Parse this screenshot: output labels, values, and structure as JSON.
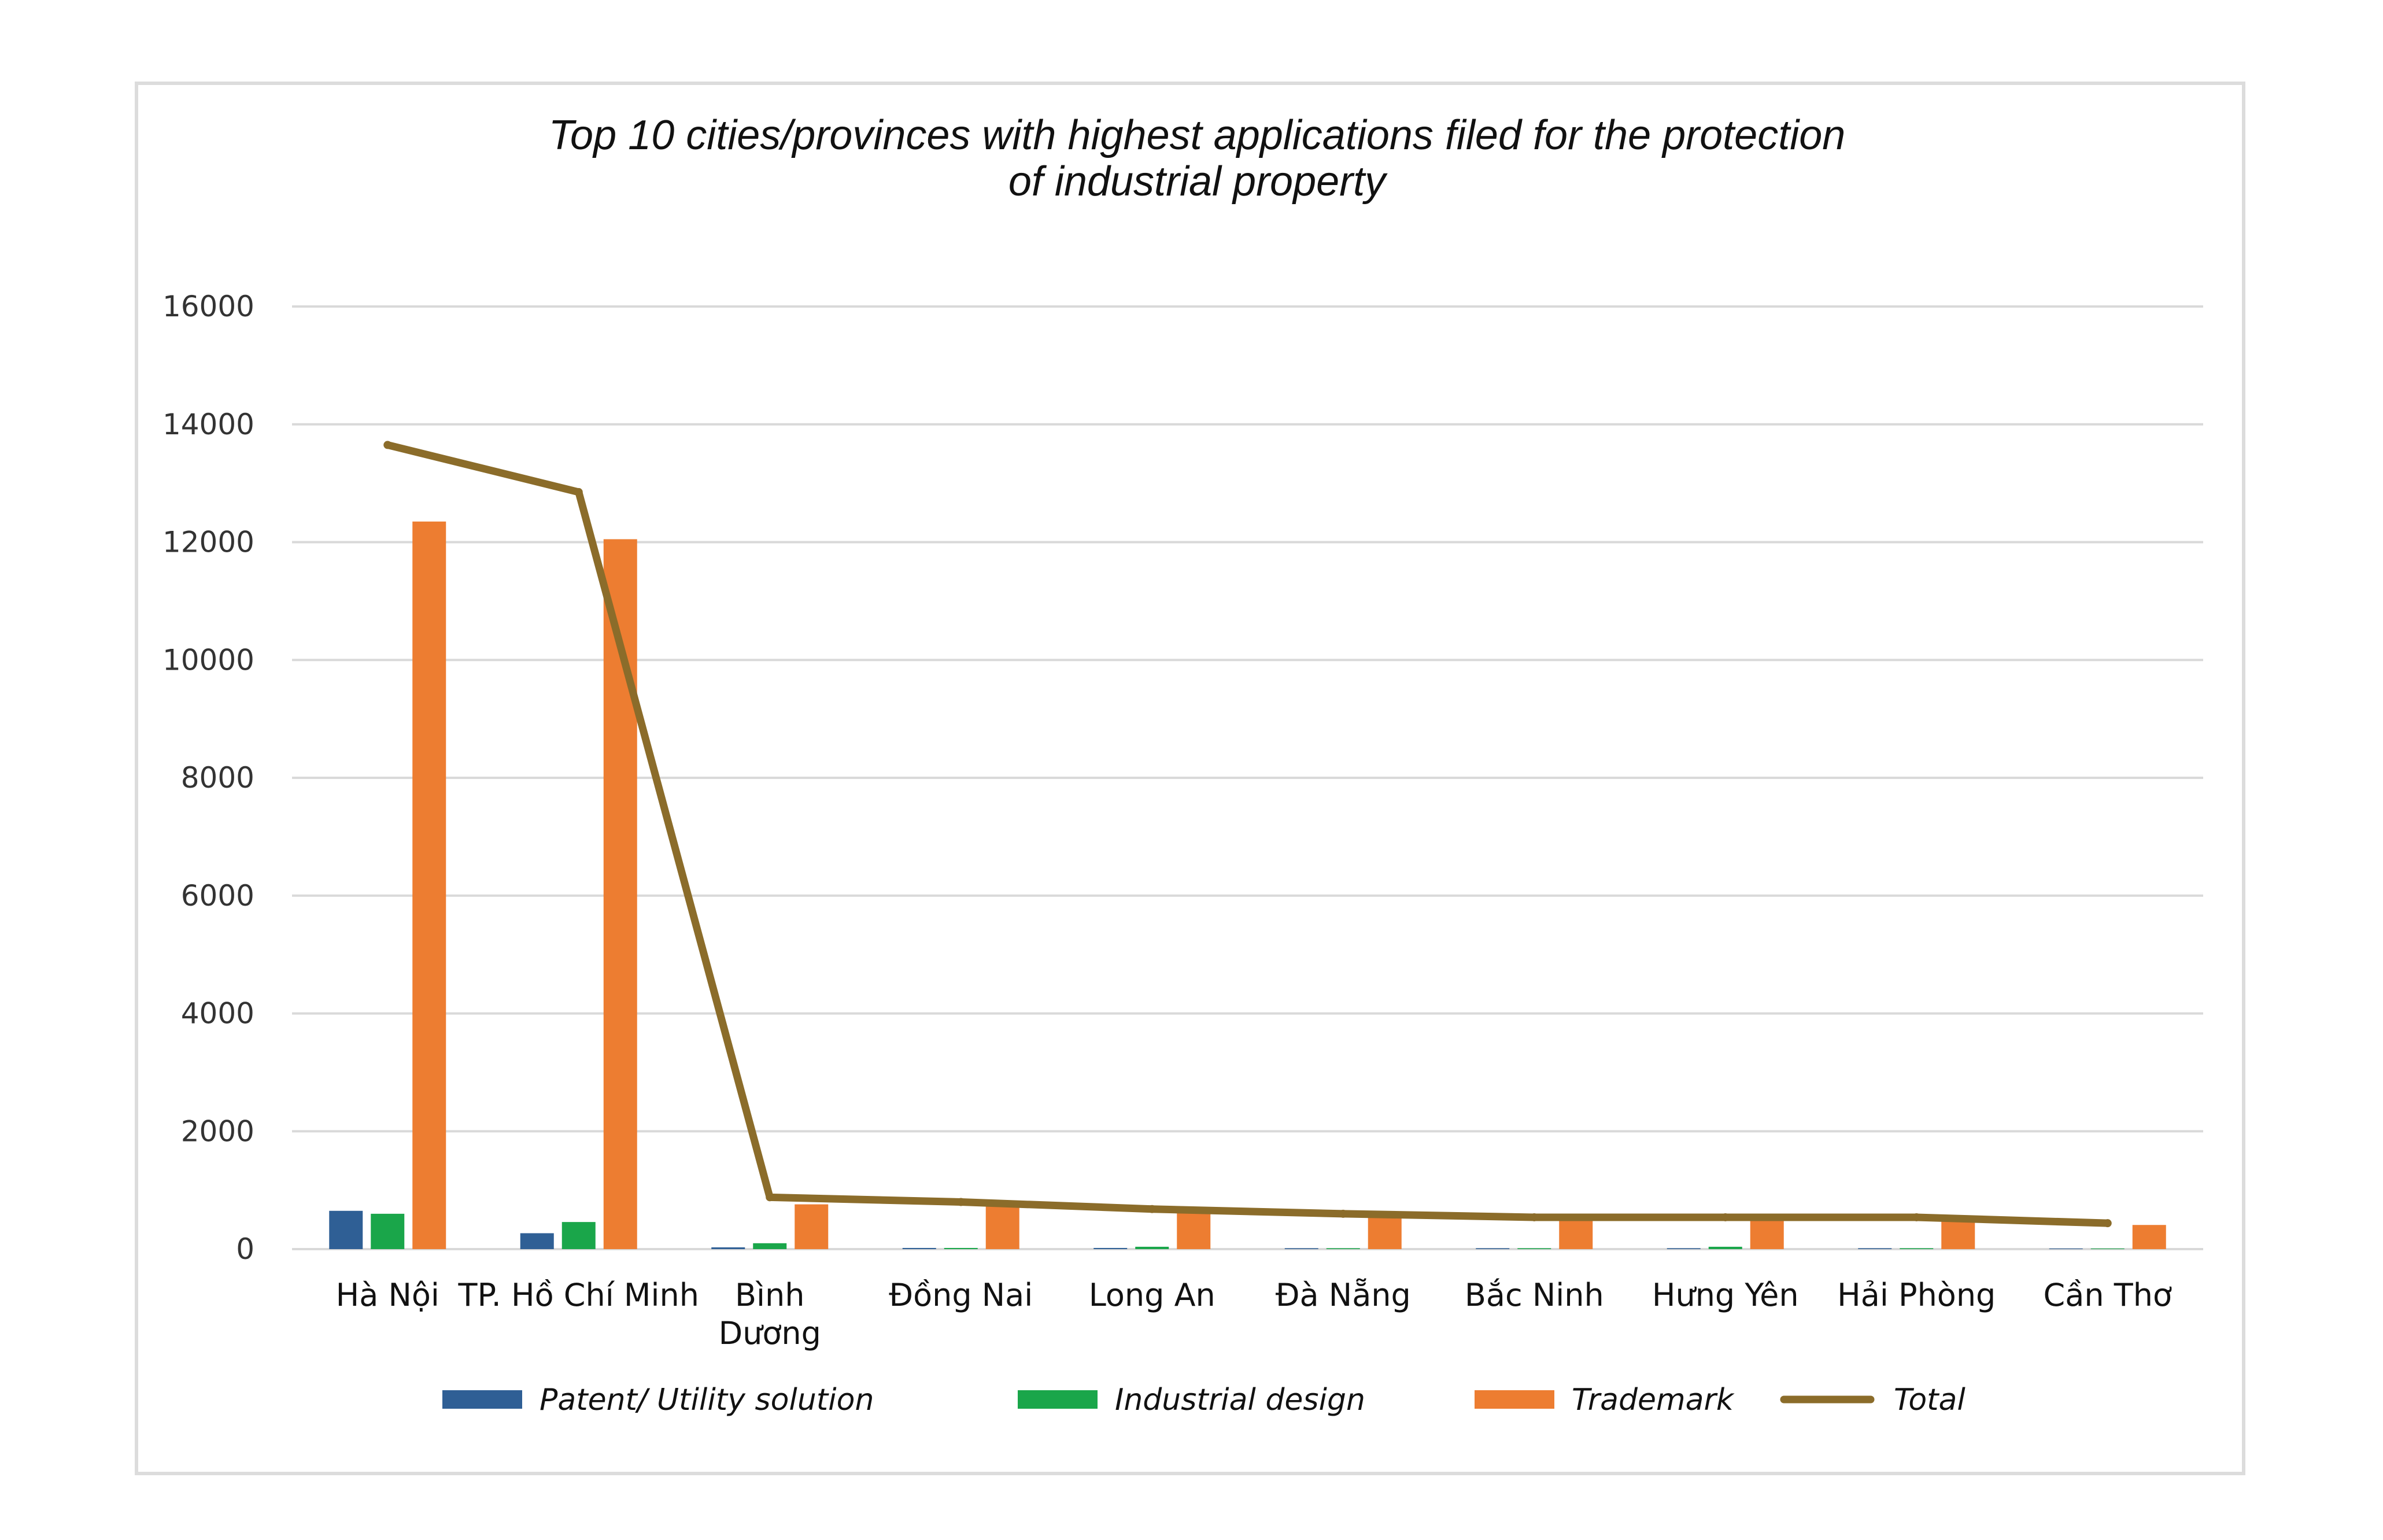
{
  "chart_data": {
    "type": "bar",
    "title_lines": [
      "Top 10 cities/provinces with highest applications filed for the protection",
      "of industrial property"
    ],
    "categories": [
      [
        "Hà Nội"
      ],
      [
        "TP. Hồ Chí Minh"
      ],
      [
        "Bình",
        "Dương"
      ],
      [
        "Đồng Nai"
      ],
      [
        "Long An"
      ],
      [
        "Đà Nẵng"
      ],
      [
        "Bắc Ninh"
      ],
      [
        "Hưng Yên"
      ],
      [
        "Hải Phòng"
      ],
      [
        "Cần Thơ"
      ]
    ],
    "ylim": [
      0,
      16000
    ],
    "yticks": [
      "0",
      "2000",
      "4000",
      "6000",
      "8000",
      "10000",
      "12000",
      "14000",
      "16000"
    ],
    "grid": true,
    "legend_position": "bottom",
    "series": [
      {
        "name": "Patent/ Utility solution",
        "type": "bar",
        "color": "#2f5f95",
        "values": [
          650,
          270,
          30,
          20,
          20,
          15,
          15,
          15,
          15,
          10
        ]
      },
      {
        "name": "Industrial design",
        "type": "bar",
        "color": "#1aa64a",
        "values": [
          600,
          460,
          100,
          20,
          40,
          15,
          15,
          40,
          15,
          10
        ]
      },
      {
        "name": "Trademark",
        "type": "bar",
        "color": "#ed7d31",
        "values": [
          12350,
          12050,
          760,
          740,
          620,
          570,
          510,
          500,
          490,
          410
        ]
      },
      {
        "name": "Total",
        "type": "line",
        "color": "#8b6c2a",
        "values": [
          13650,
          12850,
          880,
          800,
          680,
          600,
          540,
          540,
          540,
          440
        ]
      }
    ]
  }
}
